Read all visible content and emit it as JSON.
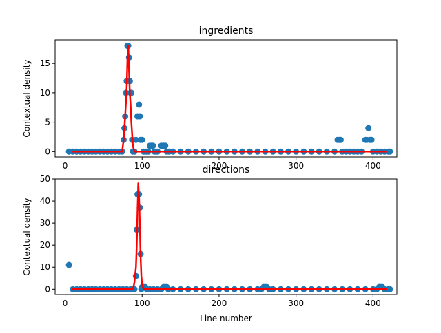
{
  "chart_data": [
    {
      "type": "scatter",
      "title": "ingredients",
      "xlabel": "",
      "ylabel": "Contextual density",
      "xlim": [
        -13,
        431
      ],
      "ylim": [
        -0.9,
        19.0
      ],
      "xticks": [
        0,
        100,
        200,
        300,
        400
      ],
      "yticks": [
        0,
        5,
        10,
        15
      ],
      "scatter_color": "#1f77b4",
      "line_color": "#ff0000",
      "scatter": {
        "x": [
          5,
          10,
          15,
          20,
          25,
          30,
          35,
          40,
          45,
          50,
          55,
          60,
          65,
          70,
          74,
          76,
          77,
          78,
          79,
          80,
          81,
          82,
          83,
          84,
          85,
          86,
          87,
          88,
          90,
          92,
          94,
          96,
          97,
          98,
          100,
          102,
          104,
          106,
          108,
          110,
          112,
          114,
          116,
          118,
          120,
          125,
          128,
          130,
          132,
          135,
          140,
          150,
          160,
          170,
          180,
          190,
          200,
          210,
          220,
          230,
          240,
          250,
          260,
          270,
          280,
          290,
          300,
          310,
          320,
          330,
          340,
          350,
          354,
          356,
          358,
          360,
          365,
          370,
          375,
          380,
          385,
          390,
          392,
          394,
          396,
          398,
          400,
          405,
          410,
          415,
          420,
          422
        ],
        "y": [
          0,
          0,
          0,
          0,
          0,
          0,
          0,
          0,
          0,
          0,
          0,
          0,
          0,
          0,
          0,
          2,
          4,
          6,
          10,
          12,
          18,
          18,
          16,
          12,
          10,
          10,
          2,
          0,
          0,
          2,
          6,
          8,
          6,
          2,
          2,
          0,
          0,
          0,
          0,
          1,
          1,
          1,
          0,
          0,
          0,
          1,
          1,
          1,
          0,
          0,
          0,
          0,
          0,
          0,
          0,
          0,
          0,
          0,
          0,
          0,
          0,
          0,
          0,
          0,
          0,
          0,
          0,
          0,
          0,
          0,
          0,
          0,
          2,
          2,
          2,
          0,
          0,
          0,
          0,
          0,
          0,
          2,
          2,
          4,
          2,
          2,
          0,
          0,
          0,
          0,
          0,
          0
        ]
      },
      "line": {
        "x": [
          9,
          70,
          74,
          76,
          78,
          80,
          81,
          82,
          83,
          84,
          85,
          86,
          88,
          90,
          100,
          200,
          300,
          400,
          418
        ],
        "y": [
          0,
          0,
          0,
          2,
          6,
          11,
          16,
          18,
          14,
          10,
          8,
          5,
          1,
          0,
          0,
          0,
          0,
          0,
          0
        ]
      }
    },
    {
      "type": "scatter",
      "title": "directions",
      "xlabel": "Line number",
      "ylabel": "Contextual density",
      "xlim": [
        -13,
        431
      ],
      "ylim": [
        -2.4,
        50.0
      ],
      "xticks": [
        0,
        100,
        200,
        300,
        400
      ],
      "yticks": [
        0,
        10,
        20,
        30,
        40,
        50
      ],
      "scatter_color": "#1f77b4",
      "line_color": "#ff0000",
      "scatter": {
        "x": [
          5,
          10,
          15,
          20,
          25,
          30,
          35,
          40,
          45,
          50,
          55,
          60,
          65,
          70,
          75,
          80,
          85,
          88,
          90,
          92,
          93,
          94,
          95,
          96,
          97,
          98,
          99,
          100,
          102,
          104,
          106,
          110,
          115,
          120,
          125,
          128,
          130,
          132,
          134,
          140,
          150,
          160,
          170,
          180,
          190,
          200,
          210,
          220,
          230,
          240,
          250,
          255,
          258,
          260,
          262,
          265,
          270,
          280,
          290,
          300,
          310,
          320,
          330,
          340,
          350,
          360,
          370,
          380,
          390,
          400,
          405,
          408,
          410,
          412,
          415,
          420,
          422
        ],
        "y": [
          11,
          0,
          0,
          0,
          0,
          0,
          0,
          0,
          0,
          0,
          0,
          0,
          0,
          0,
          0,
          0,
          0,
          0,
          0,
          6,
          27,
          43,
          43,
          43,
          37,
          16,
          0,
          1,
          1,
          1,
          0,
          0,
          0,
          0,
          0,
          1,
          1,
          1,
          0,
          0,
          0,
          0,
          0,
          0,
          0,
          0,
          0,
          0,
          0,
          0,
          0,
          0,
          1,
          1,
          1,
          0,
          0,
          0,
          0,
          0,
          0,
          0,
          0,
          0,
          0,
          0,
          0,
          0,
          0,
          0,
          0,
          1,
          1,
          1,
          0,
          0,
          0
        ]
      },
      "line": {
        "x": [
          9,
          85,
          88,
          90,
          92,
          93,
          94,
          95,
          96,
          97,
          98,
          99,
          100,
          102,
          105,
          110,
          200,
          300,
          400,
          418
        ],
        "y": [
          0,
          0,
          0,
          3,
          10,
          20,
          35,
          48,
          42,
          30,
          15,
          6,
          2,
          0,
          0,
          0,
          0,
          0,
          0,
          0
        ]
      }
    }
  ]
}
